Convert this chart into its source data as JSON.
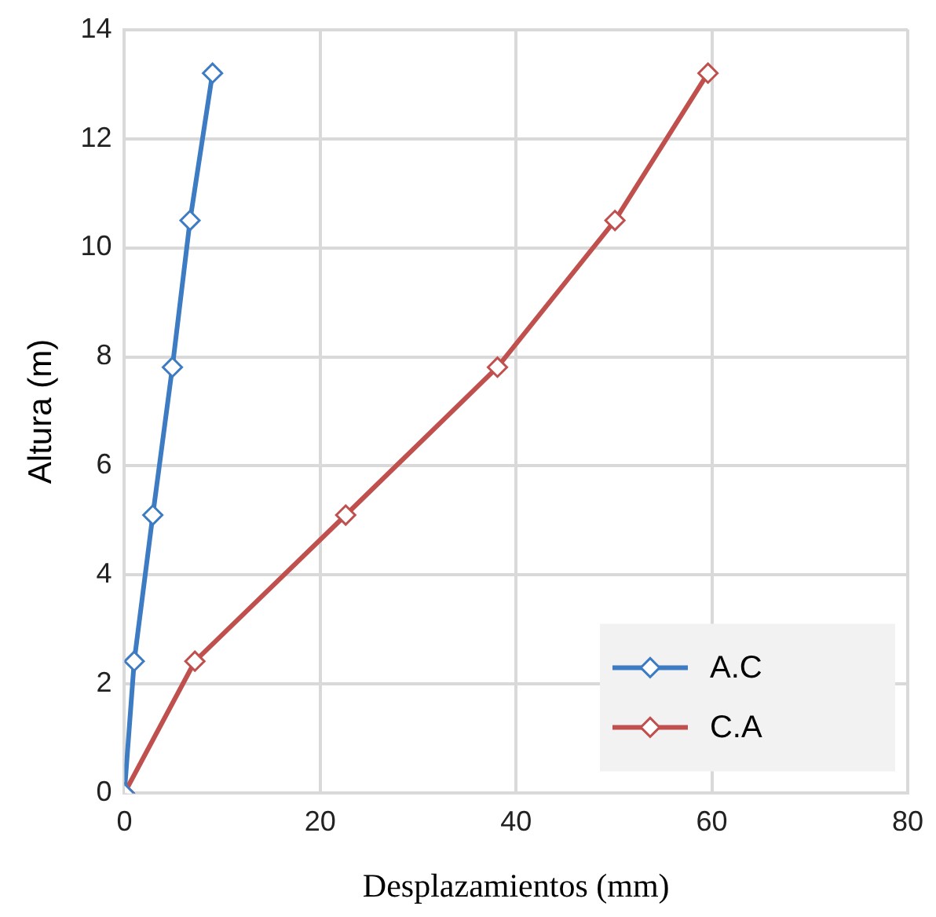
{
  "chart_data": {
    "type": "line",
    "xlabel": "Desplazamientos (mm)",
    "ylabel": "Altura (m)",
    "xlim": [
      0,
      80
    ],
    "xticks": [
      0,
      20,
      40,
      60,
      80
    ],
    "ylim": [
      0,
      14
    ],
    "yticks": [
      0,
      2,
      4,
      6,
      8,
      10,
      12,
      14
    ],
    "grid": true,
    "legend": "bottom right",
    "marker": "diamond",
    "line_style": "solid",
    "series": [
      {
        "name": "A.C",
        "color": "#3d7cc2",
        "x": [
          0,
          1.0,
          2.9,
          4.9,
          6.7,
          9.0
        ],
        "values": [
          0,
          2.42,
          5.1,
          7.81,
          10.5,
          13.2
        ]
      },
      {
        "name": "C.A",
        "color": "#c0504d",
        "x": [
          0,
          7.2,
          22.6,
          38.1,
          50.1,
          59.6
        ],
        "values": [
          0,
          2.42,
          5.1,
          7.81,
          10.5,
          13.2
        ]
      }
    ]
  }
}
